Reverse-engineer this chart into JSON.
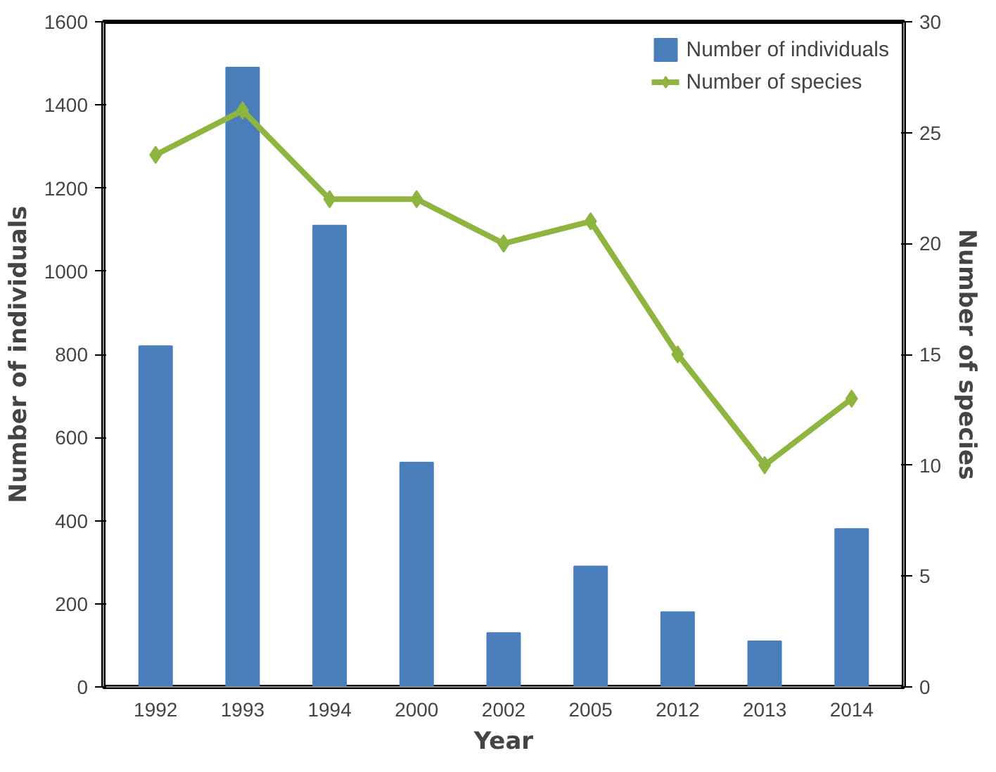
{
  "chart_data": {
    "type": "bar",
    "xlabel": "Year",
    "ylabel": "Number of individuals",
    "y2label": "Number of species",
    "categories": [
      "1992",
      "1993",
      "1994",
      "2000",
      "2002",
      "2005",
      "2012",
      "2013",
      "2014"
    ],
    "ylim": [
      0,
      1600
    ],
    "yticks": [
      0,
      200,
      400,
      600,
      800,
      1000,
      1200,
      1400,
      1600
    ],
    "y2lim": [
      0,
      30
    ],
    "y2ticks": [
      0,
      5,
      10,
      15,
      20,
      25,
      30
    ],
    "grid": false,
    "legend": "top right",
    "series": [
      {
        "name": "Number of individuals",
        "color": "#4a7ebb",
        "values": [
          820,
          1490,
          1110,
          540,
          130,
          290,
          180,
          110,
          380
        ]
      },
      {
        "name": "Number of species",
        "type": "line",
        "axis": "y2",
        "color": "#8db53f",
        "marker": "diamond",
        "values": [
          24,
          26,
          22,
          22,
          20,
          21,
          15,
          10,
          13
        ]
      }
    ]
  }
}
